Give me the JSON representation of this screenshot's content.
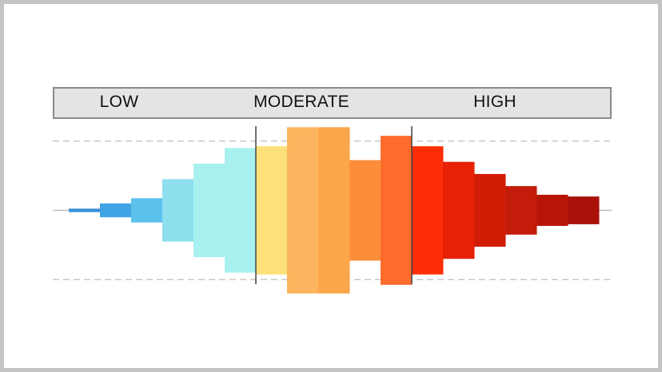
{
  "chart_data": {
    "type": "bar",
    "title": "",
    "xlabel": "",
    "ylabel": "",
    "bands": [
      {
        "label": "LOW"
      },
      {
        "label": "MODERATE"
      },
      {
        "label": "HIGH"
      }
    ],
    "values": [
      0.05,
      0.2,
      0.35,
      0.9,
      1.35,
      1.8,
      1.85,
      2.4,
      2.4,
      1.45,
      2.15,
      1.85,
      1.4,
      1.05,
      0.7,
      0.45,
      0.4
    ],
    "band_index": [
      0,
      0,
      0,
      0,
      0,
      0,
      1,
      1,
      1,
      1,
      1,
      2,
      2,
      2,
      2,
      2,
      2
    ],
    "ylim": [
      -2.5,
      2.5
    ],
    "reference_lines": [
      -2,
      2
    ],
    "grid": false,
    "legend": "none",
    "colors": [
      "#3a8fd8",
      "#3fa4e4",
      "#5cc2ec",
      "#8ddfee",
      "#a9f1f1",
      "#a9f1f1",
      "#fde07a",
      "#fcb55e",
      "#fba64a",
      "#fd8e39",
      "#fe6b2b",
      "#fd2e06",
      "#e72106",
      "#d21d06",
      "#c31c0a",
      "#b9160a",
      "#a8120a"
    ],
    "axis_line_color": "#bdbdbd",
    "dashed_line_color": "#c8c8c8",
    "divider_color": "#444444"
  }
}
